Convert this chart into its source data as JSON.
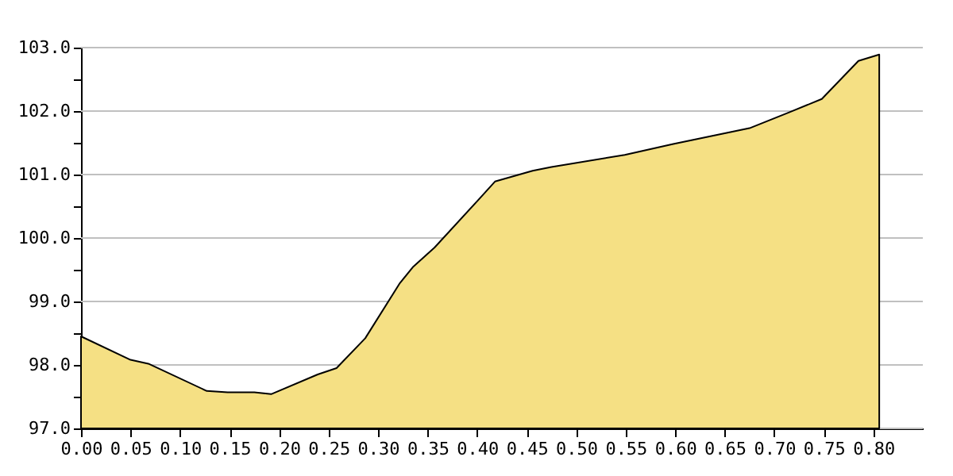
{
  "chart_data": {
    "type": "area",
    "x": [
      0.0,
      0.05,
      0.068,
      0.127,
      0.148,
      0.175,
      0.192,
      0.239,
      0.258,
      0.287,
      0.322,
      0.335,
      0.357,
      0.4,
      0.418,
      0.456,
      0.475,
      0.549,
      0.598,
      0.675,
      0.715,
      0.748,
      0.785,
      0.806
    ],
    "series": [
      {
        "color": "#f5e084",
        "values": [
          98.45,
          98.08,
          98.02,
          97.59,
          97.57,
          97.57,
          97.54,
          97.85,
          97.95,
          98.42,
          99.29,
          99.54,
          99.85,
          100.58,
          100.89,
          101.06,
          101.12,
          101.31,
          101.48,
          101.73,
          101.98,
          102.19,
          102.79,
          102.89
        ]
      }
    ],
    "xlim": [
      0,
      0.85
    ],
    "xticks": [
      {
        "value": 0,
        "label": "0.00"
      },
      {
        "value": 0.05,
        "label": "0.05"
      },
      {
        "value": 0.1,
        "label": "0.10"
      },
      {
        "value": 0.15,
        "label": "0.15"
      },
      {
        "value": 0.2,
        "label": "0.20"
      },
      {
        "value": 0.25,
        "label": "0.25"
      },
      {
        "value": 0.3,
        "label": "0.30"
      },
      {
        "value": 0.35,
        "label": "0.35"
      },
      {
        "value": 0.4,
        "label": "0.40"
      },
      {
        "value": 0.45,
        "label": "0.45"
      },
      {
        "value": 0.5,
        "label": "0.50"
      },
      {
        "value": 0.55,
        "label": "0.55"
      },
      {
        "value": 0.6,
        "label": "0.60"
      },
      {
        "value": 0.65,
        "label": "0.65"
      },
      {
        "value": 0.7,
        "label": "0.70"
      },
      {
        "value": 0.75,
        "label": "0.75"
      },
      {
        "value": 0.8,
        "label": "0.80"
      }
    ],
    "ylim": [
      97,
      103
    ],
    "yticks": [
      {
        "value": 97,
        "label": "97.0"
      },
      {
        "value": 97.5,
        "label": null
      },
      {
        "value": 98,
        "label": "98.0"
      },
      {
        "value": 98.5,
        "label": null
      },
      {
        "value": 99,
        "label": "99.0"
      },
      {
        "value": 99.5,
        "label": null
      },
      {
        "value": 100,
        "label": "100.0"
      },
      {
        "value": 100.5,
        "label": null
      },
      {
        "value": 101,
        "label": "101.0"
      },
      {
        "value": 101.5,
        "label": null
      },
      {
        "value": 102,
        "label": "102.0"
      },
      {
        "value": 102.5,
        "label": null
      },
      {
        "value": 103,
        "label": "103.0"
      }
    ],
    "grid": "y",
    "line_style": "solid"
  }
}
